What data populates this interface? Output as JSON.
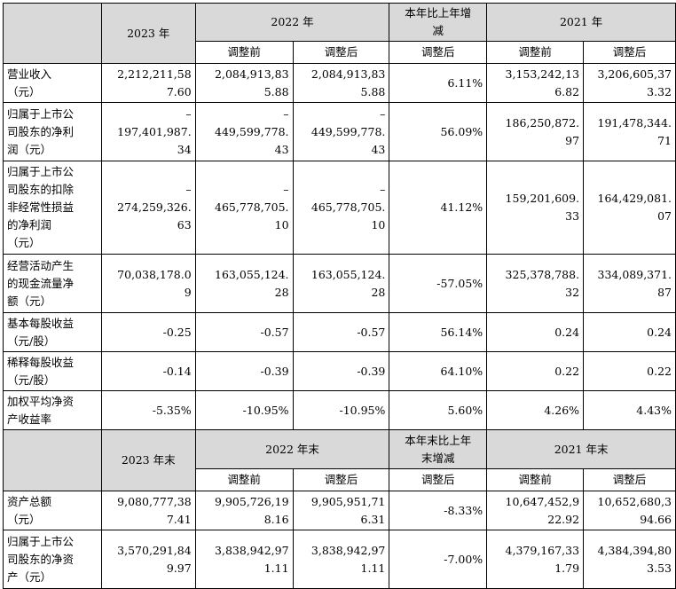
{
  "header1": {
    "y2023": "2023 年",
    "y2022": "2022 年",
    "change": [
      "本年比上年增",
      "减"
    ],
    "y2021": "2021 年",
    "before": "调整前",
    "after": "调整后",
    "after_change": "调整后"
  },
  "rows1": [
    {
      "label": [
        "营业收入",
        "（元）"
      ],
      "v2023": [
        "2,212,211,58",
        "7.60"
      ],
      "v2022b": [
        "2,084,913,83",
        "5.88"
      ],
      "v2022a": [
        "2,084,913,83",
        "5.88"
      ],
      "chg": "6.11%",
      "v2021b": [
        "3,153,242,13",
        "6.82"
      ],
      "v2021a": [
        "3,206,605,37",
        "3.32"
      ]
    },
    {
      "label": [
        "归属于上市公",
        "司股东的净利",
        "润（元）"
      ],
      "v2023": [
        "–",
        "197,401,987.",
        "34"
      ],
      "v2022b": [
        "–",
        "449,599,778.",
        "43"
      ],
      "v2022a": [
        "–",
        "449,599,778.",
        "43"
      ],
      "chg": "56.09%",
      "v2021b": [
        "",
        "186,250,872.",
        "97"
      ],
      "v2021a": [
        "",
        "191,478,344.",
        "71"
      ]
    },
    {
      "label": [
        "归属于上市公",
        "司股东的扣除",
        "非经常性损益",
        "的净利润",
        "（元）"
      ],
      "v2023": [
        "–",
        "274,259,326.",
        "63"
      ],
      "v2022b": [
        "–",
        "465,778,705.",
        "10"
      ],
      "v2022a": [
        "–",
        "465,778,705.",
        "10"
      ],
      "chg": "41.12%",
      "v2021b": [
        "",
        "159,201,609.",
        "33"
      ],
      "v2021a": [
        "",
        "164,429,081.",
        "07"
      ]
    },
    {
      "label": [
        "经营活动产生",
        "的现金流量净",
        "额（元）"
      ],
      "v2023": [
        "70,038,178.0",
        "9"
      ],
      "v2022b": [
        "163,055,124.",
        "28"
      ],
      "v2022a": [
        "163,055,124.",
        "28"
      ],
      "chg": "-57.05%",
      "v2021b": [
        "325,378,788.",
        "32"
      ],
      "v2021a": [
        "334,089,371.",
        "87"
      ]
    },
    {
      "label": [
        "基本每股收益",
        "（元/股）"
      ],
      "v2023": [
        "-0.25"
      ],
      "v2022b": [
        "-0.57"
      ],
      "v2022a": [
        "-0.57"
      ],
      "chg": "56.14%",
      "v2021b": [
        "0.24"
      ],
      "v2021a": [
        "0.24"
      ]
    },
    {
      "label": [
        "稀释每股收益",
        "（元/股）"
      ],
      "v2023": [
        "-0.14"
      ],
      "v2022b": [
        "-0.39"
      ],
      "v2022a": [
        "-0.39"
      ],
      "chg": "64.10%",
      "v2021b": [
        "0.22"
      ],
      "v2021a": [
        "0.22"
      ]
    },
    {
      "label": [
        "加权平均净资",
        "产收益率"
      ],
      "v2023": [
        "-5.35%"
      ],
      "v2022b": [
        "-10.95%"
      ],
      "v2022a": [
        "-10.95%"
      ],
      "chg": "5.60%",
      "v2021b": [
        "4.26%"
      ],
      "v2021a": [
        "4.43%"
      ]
    }
  ],
  "header2": {
    "y2023": "2023 年末",
    "y2022": "2022 年末",
    "change": [
      "本年末比上年",
      "末增减"
    ],
    "y2021": "2021 年末",
    "before": "调整前",
    "after": "调整后",
    "after_change": "调整后"
  },
  "rows2": [
    {
      "label": [
        "资产总额",
        "（元）"
      ],
      "v2023": [
        "9,080,777,38",
        "7.41"
      ],
      "v2022b": [
        "9,905,726,19",
        "8.16"
      ],
      "v2022a": [
        "9,905,951,71",
        "6.31"
      ],
      "chg": "-8.33%",
      "v2021b": [
        "10,647,452,9",
        "22.92"
      ],
      "v2021a": [
        "10,652,680,3",
        "94.66"
      ]
    },
    {
      "label": [
        "归属于上市公",
        "司股东的净资",
        "产（元）"
      ],
      "v2023": [
        "3,570,291,84",
        "9.97"
      ],
      "v2022b": [
        "3,838,942,97",
        "1.11"
      ],
      "v2022a": [
        "3,838,942,97",
        "1.11"
      ],
      "chg": "-7.00%",
      "v2021b": [
        "4,379,167,33",
        "1.79"
      ],
      "v2021a": [
        "4,384,394,80",
        "3.53"
      ]
    }
  ]
}
